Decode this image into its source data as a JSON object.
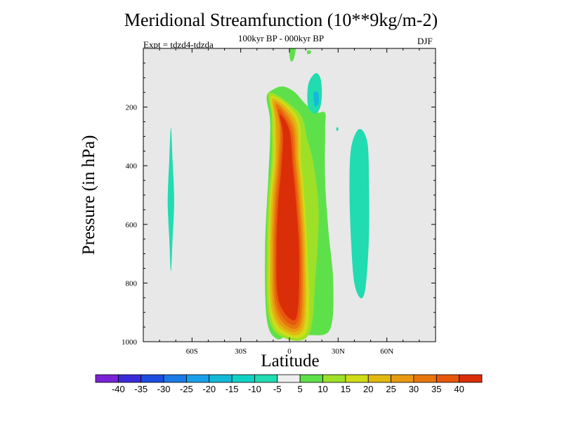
{
  "chart_data": {
    "type": "contour",
    "title": "Meridional Streamfunction (10**9kg/m-2)",
    "subtitle": "100kyr BP - 000kyr BP",
    "left_label": "Expt = tdzd4-tdzda",
    "right_label": "DJF",
    "xlabel": "Latitude",
    "ylabel": "Pressure (in hPa)",
    "xlim": [
      -90,
      90
    ],
    "ylim": [
      1000,
      0
    ],
    "x_ticks": [
      {
        "value": -60,
        "label": "60S"
      },
      {
        "value": -30,
        "label": "30S"
      },
      {
        "value": 0,
        "label": "0"
      },
      {
        "value": 30,
        "label": "30N"
      },
      {
        "value": 60,
        "label": "60N"
      }
    ],
    "y_ticks": [
      {
        "value": 200,
        "label": "200"
      },
      {
        "value": 400,
        "label": "400"
      },
      {
        "value": 600,
        "label": "600"
      },
      {
        "value": 800,
        "label": "800"
      },
      {
        "value": 1000,
        "label": "1000"
      }
    ],
    "background_color": "#e8e8e8",
    "colorbar": {
      "levels": [
        "-40",
        "-35",
        "-30",
        "-25",
        "-20",
        "-15",
        "-10",
        "-5",
        "5",
        "10",
        "15",
        "20",
        "25",
        "30",
        "35",
        "40"
      ],
      "colors": [
        "#7b22d6",
        "#3a2bd8",
        "#1c4ce0",
        "#1c79e6",
        "#1aa0e8",
        "#12bad8",
        "#10d2c4",
        "#20dcb0",
        "#eeeeee",
        "#5ee04a",
        "#9ee028",
        "#cfdc18",
        "#e2b812",
        "#e89a12",
        "#e8760e",
        "#e8580c",
        "#da2e08"
      ]
    },
    "regions": [
      {
        "name": "deep-red-core",
        "color": "#da2e08",
        "value_range": ">40",
        "points": [
          [
            -6,
            225
          ],
          [
            -4,
            295
          ],
          [
            -5,
            410
          ],
          [
            -7,
            535
          ],
          [
            -8,
            690
          ],
          [
            -7,
            850
          ],
          [
            0,
            920
          ],
          [
            5,
            900
          ],
          [
            6,
            700
          ],
          [
            4,
            520
          ],
          [
            2,
            400
          ],
          [
            0,
            280
          ]
        ]
      },
      {
        "name": "positive-35-40",
        "color": "#e8580c",
        "value_range": "35 to 40",
        "points": [
          [
            -7,
            205
          ],
          [
            -5,
            280
          ],
          [
            -6,
            400
          ],
          [
            -8,
            530
          ],
          [
            -9,
            690
          ],
          [
            -8,
            860
          ],
          [
            -1,
            935
          ],
          [
            6,
            915
          ],
          [
            7,
            700
          ],
          [
            5,
            515
          ],
          [
            3,
            395
          ],
          [
            1,
            275
          ]
        ]
      },
      {
        "name": "positive-30-35",
        "color": "#e8760e",
        "value_range": "30 to 35",
        "points": [
          [
            -8,
            190
          ],
          [
            -6,
            270
          ],
          [
            -7,
            395
          ],
          [
            -9,
            525
          ],
          [
            -10,
            690
          ],
          [
            -9,
            870
          ],
          [
            -2,
            945
          ],
          [
            7,
            930
          ],
          [
            8,
            700
          ],
          [
            6,
            510
          ],
          [
            4,
            390
          ],
          [
            2,
            265
          ]
        ]
      },
      {
        "name": "positive-25-30",
        "color": "#e89a12",
        "value_range": "25 to 30",
        "points": [
          [
            -9,
            180
          ],
          [
            -8,
            260
          ],
          [
            -8,
            390
          ],
          [
            -10,
            520
          ],
          [
            -11,
            690
          ],
          [
            -10,
            880
          ],
          [
            -3,
            955
          ],
          [
            8,
            940
          ],
          [
            9,
            700
          ],
          [
            7,
            505
          ],
          [
            5,
            385
          ],
          [
            3,
            255
          ]
        ]
      },
      {
        "name": "positive-20-25",
        "color": "#e2b812",
        "value_range": "20 to 25",
        "points": [
          [
            -10,
            170
          ],
          [
            -9,
            250
          ],
          [
            -9,
            385
          ],
          [
            -11,
            515
          ],
          [
            -12,
            690
          ],
          [
            -11,
            890
          ],
          [
            -3,
            965
          ],
          [
            9,
            950
          ],
          [
            10,
            700
          ],
          [
            8,
            500
          ],
          [
            6,
            380
          ],
          [
            4,
            245
          ]
        ]
      },
      {
        "name": "positive-15-20",
        "color": "#cfdc18",
        "value_range": "15 to 20",
        "points": [
          [
            -11,
            160
          ],
          [
            -10,
            240
          ],
          [
            -10,
            380
          ],
          [
            -12,
            510
          ],
          [
            -13,
            690
          ],
          [
            -12,
            900
          ],
          [
            -4,
            975
          ],
          [
            11,
            960
          ],
          [
            11,
            700
          ],
          [
            9,
            495
          ],
          [
            7,
            375
          ],
          [
            5,
            235
          ]
        ]
      },
      {
        "name": "positive-10-15",
        "color": "#9ee028",
        "value_range": "10 to 15",
        "points": [
          [
            -12,
            150
          ],
          [
            -11,
            230
          ],
          [
            -11,
            375
          ],
          [
            -13,
            505
          ],
          [
            -14,
            690
          ],
          [
            -13,
            910
          ],
          [
            -4,
            985
          ],
          [
            12,
            975
          ],
          [
            16,
            780
          ],
          [
            18,
            560
          ],
          [
            15,
            400
          ],
          [
            11,
            310
          ],
          [
            6,
            220
          ]
        ]
      },
      {
        "name": "positive-5-10",
        "color": "#5ee04a",
        "value_range": "5 to 10",
        "points": [
          [
            -14,
            165
          ],
          [
            -12,
            240
          ],
          [
            -12,
            320
          ],
          [
            -13,
            440
          ],
          [
            -15,
            680
          ],
          [
            -14,
            920
          ],
          [
            -8,
            990
          ],
          [
            0,
            975
          ],
          [
            12,
            978
          ],
          [
            25,
            958
          ],
          [
            27,
            800
          ],
          [
            24,
            620
          ],
          [
            22,
            450
          ],
          [
            22,
            280
          ],
          [
            22,
            220
          ],
          [
            17,
            218
          ],
          [
            10,
            190
          ],
          [
            3,
            148
          ],
          [
            -4,
            130
          ],
          [
            -10,
            140
          ]
        ]
      },
      {
        "name": "positive-5-10-upper-plume",
        "color": "#5ee04a",
        "value_range": "5 to 10",
        "points": [
          [
            0,
            -20
          ],
          [
            4,
            -20
          ],
          [
            3,
            30
          ],
          [
            1,
            45
          ],
          [
            0,
            20
          ]
        ]
      },
      {
        "name": "positive-5-10-upper-dot",
        "color": "#5ee04a",
        "value_range": "5 to 10",
        "points": [
          [
            11,
            8
          ],
          [
            13,
            8
          ],
          [
            13,
            18
          ],
          [
            11,
            18
          ]
        ]
      },
      {
        "name": "negative-tropical-upper-10",
        "color": "#20dcb0",
        "value_range": "-10 to -5",
        "points": [
          [
            16,
            85
          ],
          [
            12,
            115
          ],
          [
            11,
            165
          ],
          [
            12,
            205
          ],
          [
            16,
            222
          ],
          [
            19,
            200
          ],
          [
            20,
            150
          ],
          [
            19,
            100
          ]
        ]
      },
      {
        "name": "negative-tropical-upper-15",
        "color": "#12bad8",
        "value_range": "-15 to -10",
        "points": [
          [
            15,
            150
          ],
          [
            15,
            178
          ],
          [
            16,
            198
          ],
          [
            18,
            186
          ],
          [
            18,
            158
          ],
          [
            17,
            148
          ]
        ]
      },
      {
        "name": "negative-nh-midlat",
        "color": "#20dcb0",
        "value_range": "-10 to -5",
        "points": [
          [
            43,
            275
          ],
          [
            38,
            340
          ],
          [
            37,
            480
          ],
          [
            38,
            660
          ],
          [
            40,
            800
          ],
          [
            44,
            852
          ],
          [
            47,
            810
          ],
          [
            49,
            640
          ],
          [
            49,
            460
          ],
          [
            48,
            320
          ]
        ]
      },
      {
        "name": "negative-nh-speck",
        "color": "#20dcb0",
        "value_range": "-10 to -5",
        "points": [
          [
            29,
            270
          ],
          [
            30,
            270
          ],
          [
            30,
            280
          ],
          [
            29,
            280
          ]
        ]
      },
      {
        "name": "negative-sh-midlat",
        "color": "#20dcb0",
        "value_range": "-10 to -5",
        "points": [
          [
            -73,
            270
          ],
          [
            -74,
            380
          ],
          [
            -75,
            520
          ],
          [
            -74,
            650
          ],
          [
            -73,
            760
          ],
          [
            -72,
            650
          ],
          [
            -71,
            520
          ],
          [
            -72,
            380
          ]
        ]
      }
    ]
  }
}
